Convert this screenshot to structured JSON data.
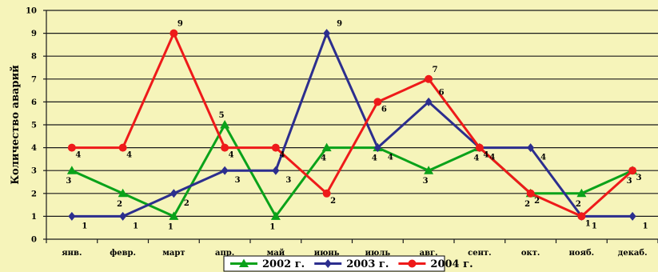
{
  "colors": {
    "background": "#f6f4ba",
    "grid": "#1a1a1a",
    "series_2002": "#0aa21a",
    "series_2003": "#2c2e8e",
    "series_2004": "#ee1a1a"
  },
  "chart_data": {
    "type": "line",
    "title": "",
    "xlabel": "",
    "ylabel": "Количество аварий",
    "ylim": [
      0,
      10
    ],
    "yticks": [
      0,
      1,
      2,
      3,
      4,
      5,
      6,
      7,
      8,
      9,
      10
    ],
    "grid": true,
    "legend_position": "bottom",
    "categories": [
      "янв.",
      "февр.",
      "март",
      "апр.",
      "май",
      "июнь",
      "июль",
      "авг.",
      "сент.",
      "окт.",
      "нояб.",
      "декаб."
    ],
    "series": [
      {
        "name": "2002 г.",
        "marker": "triangle",
        "color": "#0aa21a",
        "values": [
          3,
          2,
          1,
          5,
          1,
          4,
          4,
          3,
          4,
          2,
          2,
          3
        ]
      },
      {
        "name": "2003 г.",
        "marker": "diamond",
        "color": "#2c2e8e",
        "values": [
          1,
          1,
          2,
          3,
          3,
          9,
          4,
          6,
          4,
          4,
          1,
          1
        ]
      },
      {
        "name": "2004 г.",
        "marker": "circle",
        "color": "#ee1a1a",
        "values": [
          4,
          4,
          9,
          4,
          4,
          2,
          6,
          7,
          4,
          2,
          1,
          3
        ]
      }
    ]
  }
}
